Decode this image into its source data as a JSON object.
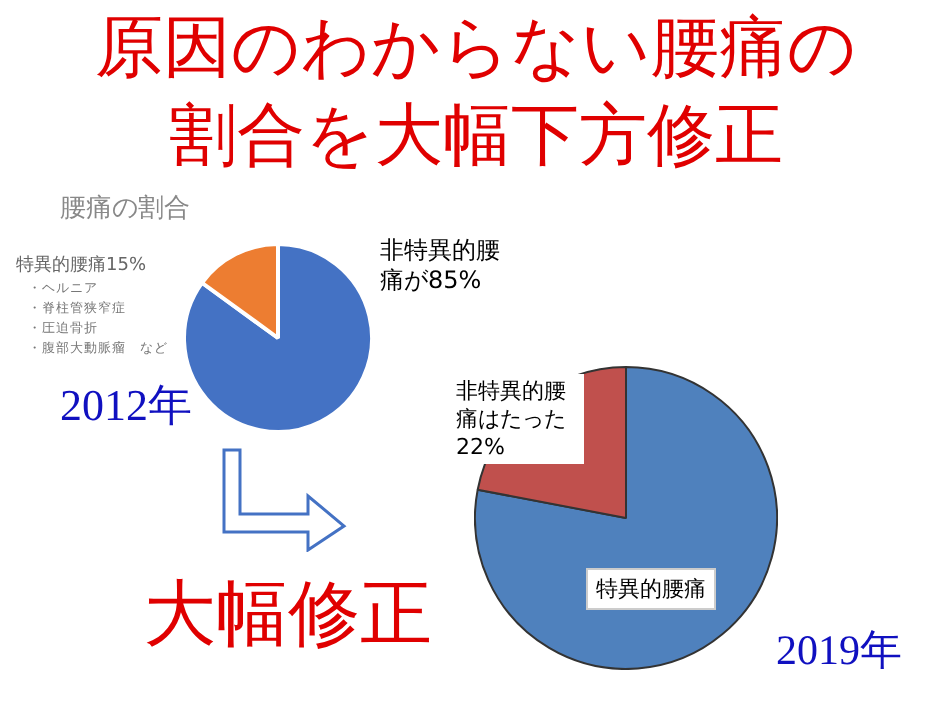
{
  "chart_data": [
    {
      "type": "pie",
      "title": "原因のわからない腰痛の割合を大幅下方修正",
      "subtitle": "腰痛の割合",
      "categories": [
        null,
        null
      ],
      "values": [
        85,
        15
      ],
      "colors": [
        "#4472c4",
        "#ed7d31"
      ],
      "value_labels": [
        "非特異的腰痛が85%",
        "特異的腰痛15%"
      ],
      "annotations": [
        "・ヘルニア",
        "・脊柱管狭窄症",
        "・圧迫骨折",
        "・腹部大動脈瘤　など",
        "2012年"
      ]
    },
    {
      "type": "pie",
      "categories": [
        "特異的腰痛",
        null
      ],
      "values": [
        78,
        22
      ],
      "colors": [
        "#4f81bd",
        "#c0504d"
      ],
      "value_labels": [
        null,
        "非特異的腰痛はたった22%"
      ],
      "annotations": [
        "大幅修正",
        "2019年"
      ]
    }
  ]
}
